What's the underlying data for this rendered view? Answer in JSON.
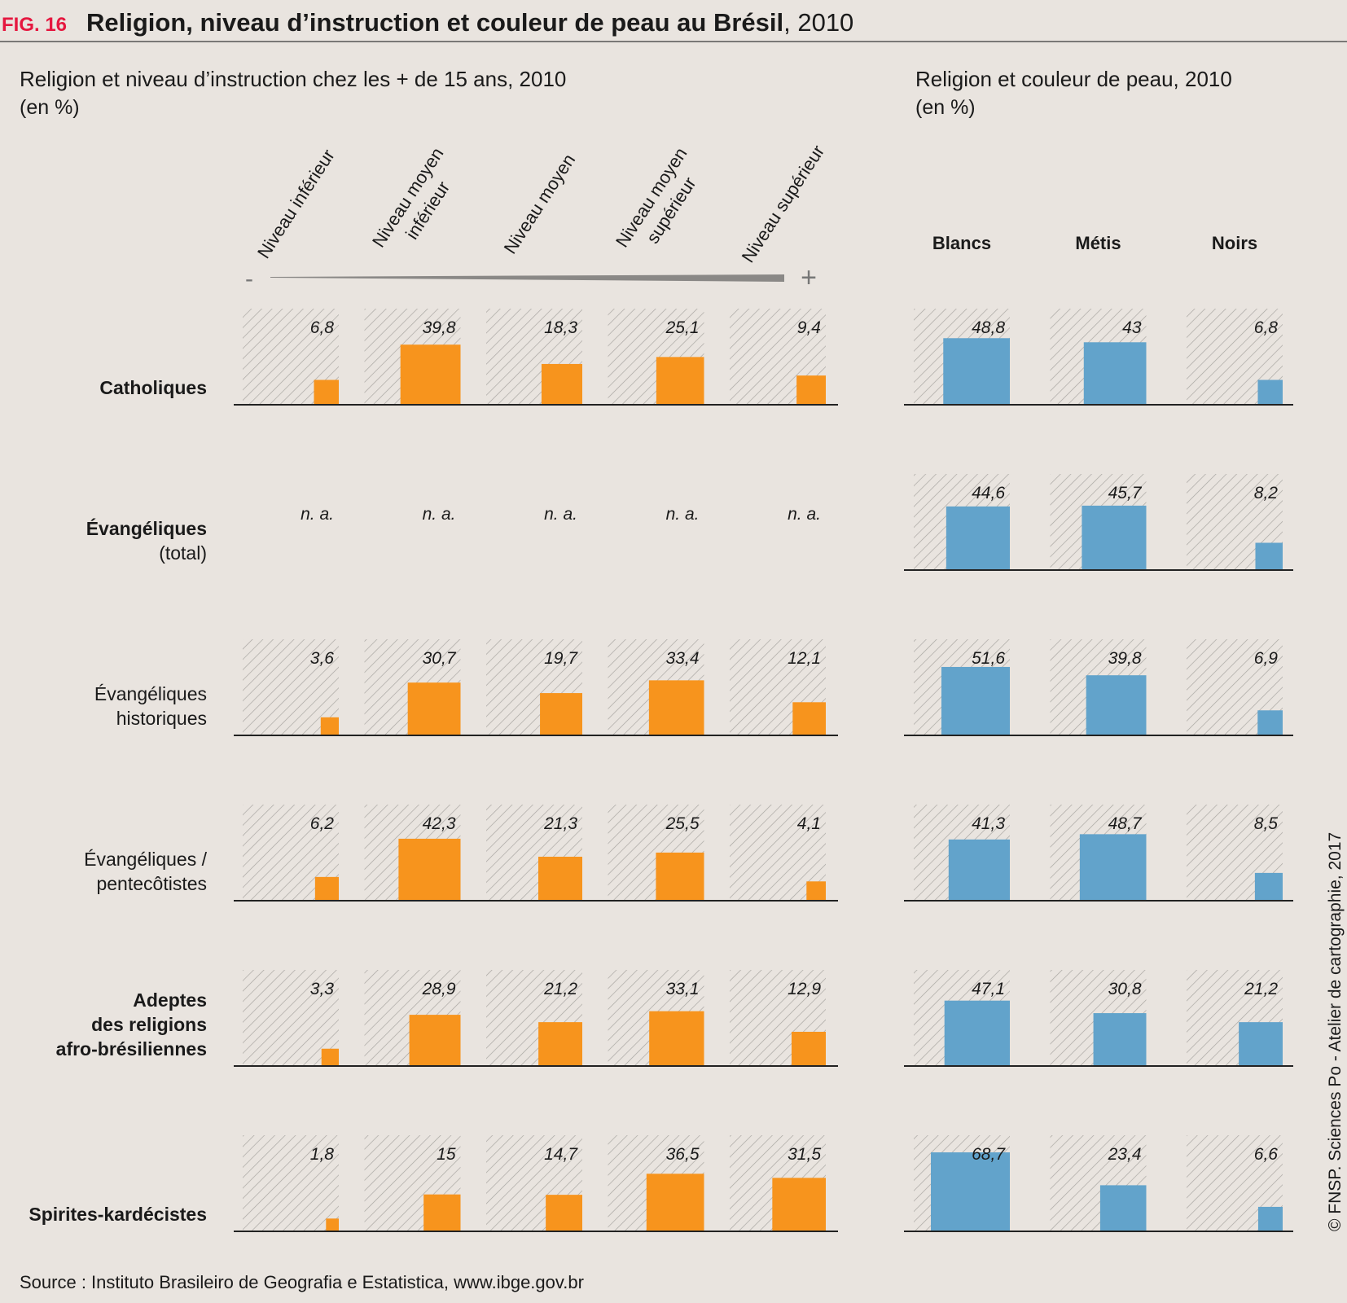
{
  "header": {
    "fig": "FIG. 16",
    "title": "Religion, niveau d’instruction et couleur de peau au Brésil",
    "year": ", 2010"
  },
  "rows": [
    {
      "label": "Catholiques",
      "bold": true
    },
    {
      "label": "Évangéliques",
      "note": "(total)",
      "bold": true
    },
    {
      "label": "Évangéliques\nhistoriques",
      "bold": false
    },
    {
      "label": "Évangéliques /\npentecôtistes",
      "bold": false
    },
    {
      "label": "Adeptes\ndes religions\nafro-brésiliennes",
      "bold": true
    },
    {
      "label": "Spirites-kardécistes",
      "bold": true
    }
  ],
  "chart_data": [
    {
      "type": "bar",
      "title": "Religion et niveau d’instruction chez les + de 15 ans, 2010",
      "subtitle": "(en %)",
      "categories": [
        "Niveau inférieur",
        "Niveau moyen\ninférieur",
        "Niveau moyen",
        "Niveau moyen\nsupérieur",
        "Niveau supérieur"
      ],
      "scale_low": "-",
      "scale_high": "+",
      "color": "#f7941d",
      "na_label": "n. a.",
      "series": [
        {
          "values": [
            6.8,
            39.8,
            18.3,
            25.1,
            9.4
          ],
          "value_labels": [
            "6,8",
            "39,8",
            "18,3",
            "25,1",
            "9,4"
          ]
        },
        {
          "values": [
            null,
            null,
            null,
            null,
            null
          ],
          "value_labels": [
            null,
            null,
            null,
            null,
            null
          ]
        },
        {
          "values": [
            3.6,
            30.7,
            19.7,
            33.4,
            12.1
          ],
          "value_labels": [
            "3,6",
            "30,7",
            "19,7",
            "33,4",
            "12,1"
          ]
        },
        {
          "values": [
            6.2,
            42.3,
            21.3,
            25.5,
            4.1
          ],
          "value_labels": [
            "6,2",
            "42,3",
            "21,3",
            "25,5",
            "4,1"
          ]
        },
        {
          "values": [
            3.3,
            28.9,
            21.2,
            33.1,
            12.9
          ],
          "value_labels": [
            "3,3",
            "28,9",
            "21,2",
            "33,1",
            "12,9"
          ]
        },
        {
          "values": [
            1.8,
            15,
            14.7,
            36.5,
            31.5
          ],
          "value_labels": [
            "1,8",
            "15",
            "14,7",
            "36,5",
            "31,5"
          ]
        }
      ]
    },
    {
      "type": "bar",
      "title": "Religion et couleur de peau, 2010",
      "subtitle": "(en %)",
      "categories": [
        "Blancs",
        "Métis",
        "Noirs"
      ],
      "color": "#62a3cb",
      "series": [
        {
          "values": [
            48.8,
            43,
            6.8
          ],
          "value_labels": [
            "48,8",
            "43",
            "6,8"
          ]
        },
        {
          "values": [
            44.6,
            45.7,
            8.2
          ],
          "value_labels": [
            "44,6",
            "45,7",
            "8,2"
          ]
        },
        {
          "values": [
            51.6,
            39.8,
            6.9
          ],
          "value_labels": [
            "51,6",
            "39,8",
            "6,9"
          ]
        },
        {
          "values": [
            41.3,
            48.7,
            8.5
          ],
          "value_labels": [
            "41,3",
            "48,7",
            "8,5"
          ]
        },
        {
          "values": [
            47.1,
            30.8,
            21.2
          ],
          "value_labels": [
            "47,1",
            "30,8",
            "21,2"
          ]
        },
        {
          "values": [
            68.7,
            23.4,
            6.6
          ],
          "value_labels": [
            "68,7",
            "23,4",
            "6,6"
          ]
        }
      ]
    }
  ],
  "source": "Source : Instituto Brasileiro de Geografia e Estatistica, www.ibge.gov.br",
  "credit": "© FNSP. Sciences Po - Atelier de cartographie, 2017"
}
